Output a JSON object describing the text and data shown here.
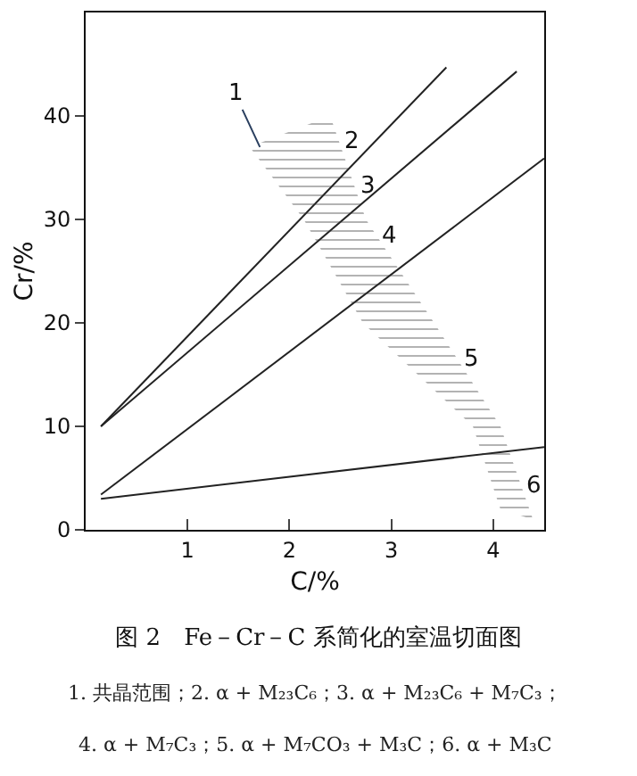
{
  "chart_data": {
    "type": "line",
    "title": "图 2　Fe－Cr－C 系简化的室温切面图",
    "xlabel": "C/%",
    "ylabel": "Cr/%",
    "xlim": [
      0,
      4.5
    ],
    "ylim": [
      0,
      50
    ],
    "xticks": [
      1,
      2,
      3,
      4
    ],
    "yticks": [
      0,
      10,
      20,
      30,
      40
    ],
    "legend": false,
    "marker": "none",
    "line_style": "solid",
    "series": [
      {
        "color": "#222222",
        "x": [
          0.15,
          3.54
        ],
        "values": [
          10,
          44.7
        ]
      },
      {
        "color": "#222222",
        "x": [
          0.15,
          4.23
        ],
        "values": [
          10,
          44.3
        ]
      },
      {
        "color": "#222222",
        "x": [
          0.15,
          4.5
        ],
        "values": [
          3.4,
          35.9
        ]
      },
      {
        "color": "#222222",
        "x": [
          0.15,
          4.5
        ],
        "values": [
          3,
          8
        ]
      },
      {
        "type": "area",
        "color": "#333333",
        "x": [
          1.61,
          2.14,
          2.72,
          3.8,
          4.07,
          4.39,
          4.07,
          3.42,
          2.75,
          2.4,
          1.61
        ],
        "values": [
          37,
          30,
          20,
          10,
          2,
          1,
          10,
          20,
          30,
          40,
          37
        ]
      }
    ],
    "annotations": [
      {
        "text": "1",
        "x": 1.71,
        "y": 37
      },
      "2",
      "3",
      "4",
      "5",
      "6",
      "1. 共晶范围；2. α + M₂₃C₆；3. α + M₂₃C₆ + M₇C₃；",
      "4. α + M₇C₃；5. α + M₇CO₃ + M₃C；6. α + M₃C"
    ]
  }
}
